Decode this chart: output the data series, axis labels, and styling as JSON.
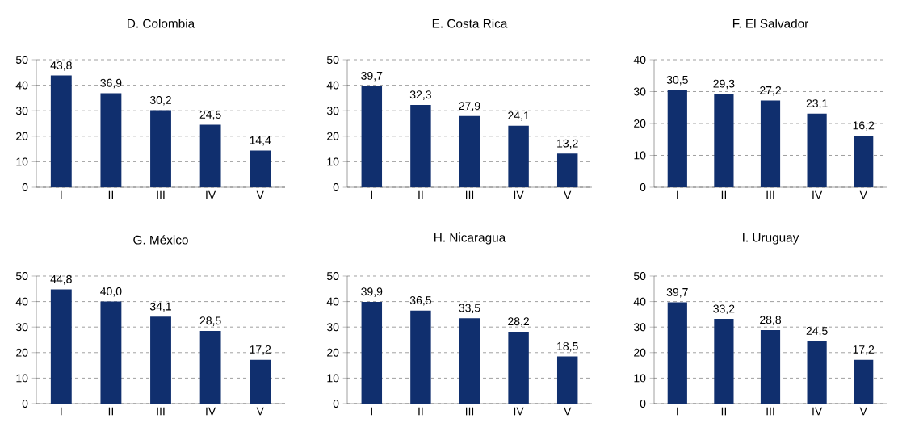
{
  "chart_data": [
    {
      "type": "bar",
      "title": "D. Colombia",
      "categories": [
        "I",
        "II",
        "III",
        "IV",
        "V"
      ],
      "values": [
        43.8,
        36.9,
        30.2,
        24.5,
        14.4
      ],
      "value_labels": [
        "43,8",
        "36,9",
        "30,2",
        "24,5",
        "14,4"
      ],
      "color": "#102f6e",
      "ylim": [
        0,
        50
      ],
      "yticks": [
        0,
        10,
        20,
        30,
        40,
        50
      ],
      "grid": "y"
    },
    {
      "type": "bar",
      "title": "E. Costa Rica",
      "categories": [
        "I",
        "II",
        "III",
        "IV",
        "V"
      ],
      "values": [
        39.7,
        32.3,
        27.9,
        24.1,
        13.2
      ],
      "value_labels": [
        "39,7",
        "32,3",
        "27,9",
        "24,1",
        "13,2"
      ],
      "color": "#102f6e",
      "ylim": [
        0,
        50
      ],
      "yticks": [
        0,
        10,
        20,
        30,
        40,
        50
      ],
      "grid": "y"
    },
    {
      "type": "bar",
      "title": "F. El Salvador",
      "categories": [
        "I",
        "II",
        "III",
        "IV",
        "V"
      ],
      "values": [
        30.5,
        29.3,
        27.2,
        23.1,
        16.2
      ],
      "value_labels": [
        "30,5",
        "29,3",
        "27,2",
        "23,1",
        "16,2"
      ],
      "color": "#102f6e",
      "ylim": [
        0,
        40
      ],
      "yticks": [
        0,
        10,
        20,
        30,
        40
      ],
      "grid": "y"
    },
    {
      "type": "bar",
      "title": "G. México",
      "categories": [
        "I",
        "II",
        "III",
        "IV",
        "V"
      ],
      "values": [
        44.8,
        40.0,
        34.1,
        28.5,
        17.2
      ],
      "value_labels": [
        "44,8",
        "40,0",
        "34,1",
        "28,5",
        "17,2"
      ],
      "color": "#102f6e",
      "ylim": [
        0,
        50
      ],
      "yticks": [
        0,
        10,
        20,
        30,
        40,
        50
      ],
      "grid": "y"
    },
    {
      "type": "bar",
      "title": "H. Nicaragua",
      "categories": [
        "I",
        "II",
        "III",
        "IV",
        "V"
      ],
      "values": [
        39.9,
        36.5,
        33.5,
        28.2,
        18.5
      ],
      "value_labels": [
        "39,9",
        "36,5",
        "33,5",
        "28,2",
        "18,5"
      ],
      "color": "#102f6e",
      "ylim": [
        0,
        50
      ],
      "yticks": [
        0,
        10,
        20,
        30,
        40,
        50
      ],
      "grid": "y"
    },
    {
      "type": "bar",
      "title": "I. Uruguay",
      "categories": [
        "I",
        "II",
        "III",
        "IV",
        "V"
      ],
      "values": [
        39.7,
        33.2,
        28.8,
        24.5,
        17.2
      ],
      "value_labels": [
        "39,7",
        "33,2",
        "28,8",
        "24,5",
        "17,2"
      ],
      "color": "#102f6e",
      "ylim": [
        0,
        50
      ],
      "yticks": [
        0,
        10,
        20,
        30,
        40,
        50
      ],
      "grid": "y"
    }
  ]
}
